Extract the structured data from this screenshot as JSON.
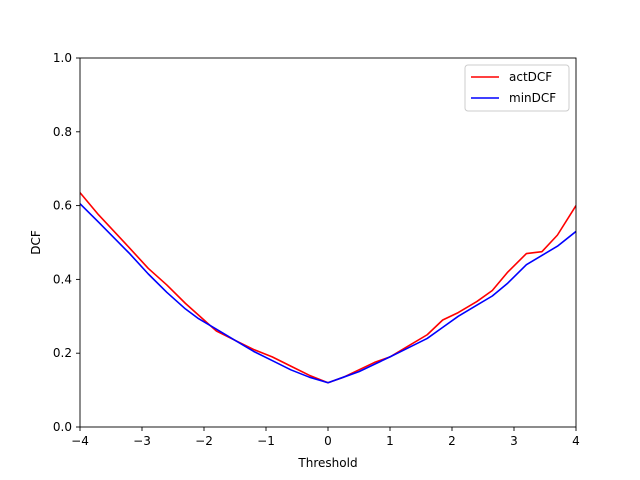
{
  "chart_data": {
    "type": "line",
    "title": "",
    "xlabel": "Threshold",
    "ylabel": "DCF",
    "xlim": [
      -4,
      4
    ],
    "ylim": [
      0.0,
      1.0
    ],
    "xticks": [
      -4,
      -3,
      -2,
      -1,
      0,
      1,
      2,
      3,
      4
    ],
    "xtick_labels": [
      "−4",
      "−3",
      "−2",
      "−1",
      "0",
      "1",
      "2",
      "3",
      "4"
    ],
    "yticks": [
      0.0,
      0.2,
      0.4,
      0.6,
      0.8,
      1.0
    ],
    "ytick_labels": [
      "0.0",
      "0.2",
      "0.4",
      "0.6",
      "0.8",
      "1.0"
    ],
    "grid": false,
    "legend_position": "top-right",
    "series": [
      {
        "name": "actDCF",
        "color": "#ff0000",
        "x": [
          -4.0,
          -3.7,
          -3.2,
          -2.9,
          -2.6,
          -2.3,
          -2.0,
          -1.8,
          -1.5,
          -1.2,
          -0.9,
          -0.6,
          -0.3,
          0.0,
          0.25,
          0.5,
          0.75,
          1.0,
          1.3,
          1.6,
          1.85,
          2.1,
          2.4,
          2.65,
          2.9,
          3.2,
          3.45,
          3.7,
          4.0
        ],
        "y": [
          0.635,
          0.575,
          0.485,
          0.43,
          0.385,
          0.335,
          0.29,
          0.26,
          0.235,
          0.21,
          0.19,
          0.165,
          0.14,
          0.12,
          0.135,
          0.155,
          0.175,
          0.19,
          0.22,
          0.25,
          0.29,
          0.31,
          0.34,
          0.37,
          0.42,
          0.47,
          0.475,
          0.52,
          0.6
        ]
      },
      {
        "name": "minDCF",
        "color": "#0000ff",
        "x": [
          -4.0,
          -3.7,
          -3.2,
          -2.9,
          -2.6,
          -2.3,
          -2.1,
          -1.8,
          -1.5,
          -1.2,
          -0.9,
          -0.6,
          -0.3,
          0.0,
          0.25,
          0.5,
          0.75,
          1.0,
          1.3,
          1.6,
          1.85,
          2.1,
          2.4,
          2.65,
          2.9,
          3.2,
          3.45,
          3.7,
          4.0
        ],
        "y": [
          0.605,
          0.555,
          0.47,
          0.415,
          0.365,
          0.32,
          0.295,
          0.265,
          0.235,
          0.205,
          0.18,
          0.155,
          0.135,
          0.12,
          0.135,
          0.15,
          0.17,
          0.19,
          0.215,
          0.24,
          0.27,
          0.3,
          0.33,
          0.355,
          0.39,
          0.44,
          0.465,
          0.49,
          0.53
        ]
      }
    ]
  }
}
